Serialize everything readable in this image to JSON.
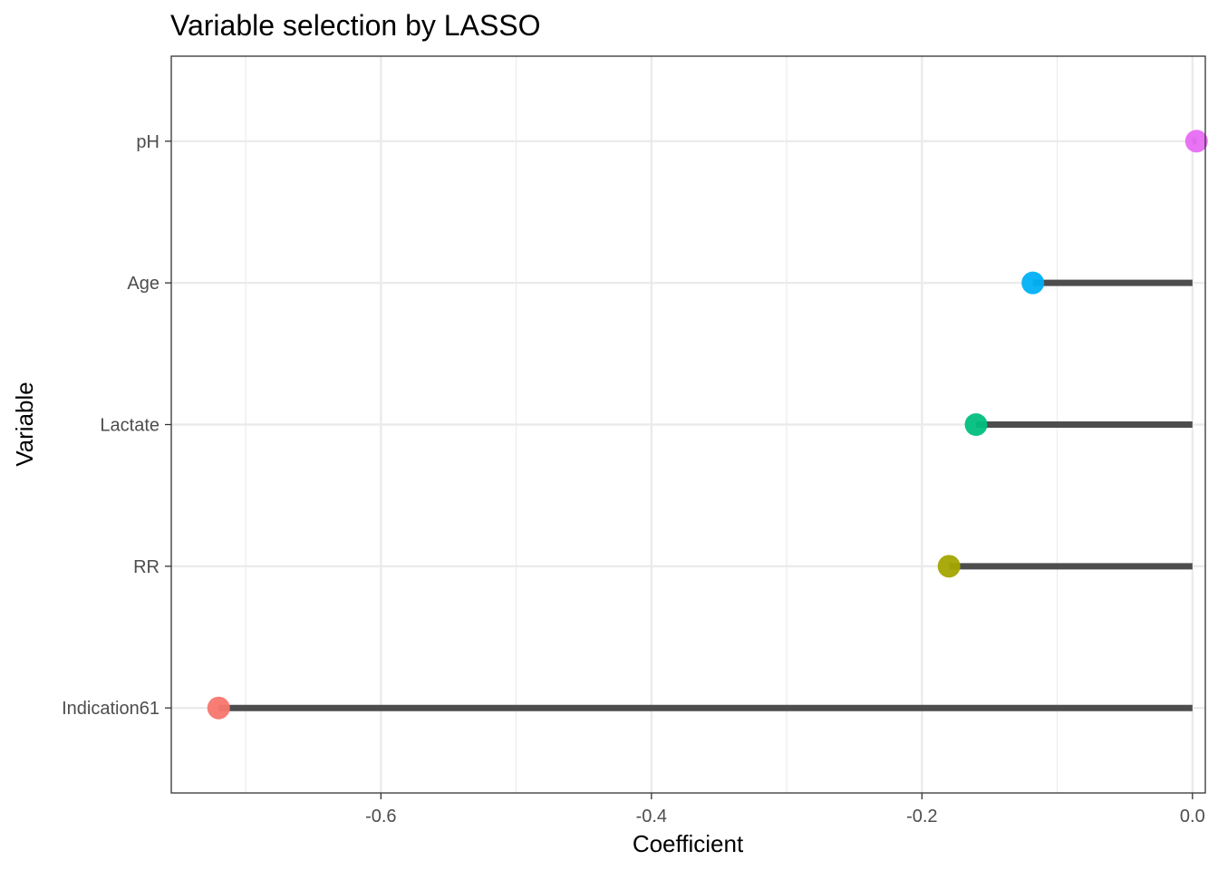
{
  "chart_data": {
    "type": "lollipop",
    "title": "Variable selection by LASSO",
    "xlabel": "Coefficient",
    "ylabel": "Variable",
    "xlim": [
      -0.755,
      0.0095
    ],
    "xticks": [
      -0.6,
      -0.4,
      -0.2,
      0.0
    ],
    "xtick_labels": [
      "-0.6",
      "-0.4",
      "-0.2",
      "0.0"
    ],
    "x_minor_gridlines": [
      -0.7,
      -0.5,
      -0.3,
      -0.1
    ],
    "categories": [
      "Indication61",
      "RR",
      "Lactate",
      "Age",
      "pH"
    ],
    "values": [
      -0.72,
      -0.18,
      -0.16,
      -0.118,
      0.003
    ],
    "point_colors": [
      "#F8766D",
      "#A3A500",
      "#00BF7D",
      "#00B0F6",
      "#E76BF3"
    ],
    "stem_color": "#4d4d4d",
    "grid": true,
    "legend": "none"
  }
}
